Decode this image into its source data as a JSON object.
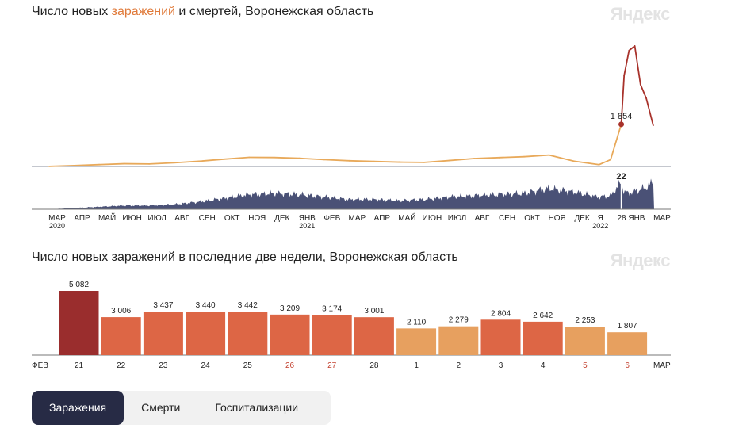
{
  "chart1": {
    "title_pre": "Число новых ",
    "title_hl": "заражений",
    "title_post": " и смертей, Воронежская область",
    "logo": "Яндекс",
    "cases_marker_label": "1 854",
    "deaths_marker_label": "22",
    "colors": {
      "cases_line": "#e8a95a",
      "cases_peak": "#a8322b",
      "deaths_area": "#4a5176",
      "marker": "#a8322b"
    },
    "x_ticks": [
      {
        "label": "МАР",
        "year": "2020",
        "red": false
      },
      {
        "label": "АПР",
        "year": "",
        "red": false
      },
      {
        "label": "МАЙ",
        "year": "",
        "red": false
      },
      {
        "label": "ИЮН",
        "year": "",
        "red": false
      },
      {
        "label": "ИЮЛ",
        "year": "",
        "red": false
      },
      {
        "label": "АВГ",
        "year": "",
        "red": false
      },
      {
        "label": "СЕН",
        "year": "",
        "red": false
      },
      {
        "label": "ОКТ",
        "year": "",
        "red": false
      },
      {
        "label": "НОЯ",
        "year": "",
        "red": false
      },
      {
        "label": "ДЕК",
        "year": "",
        "red": false
      },
      {
        "label": "ЯНВ",
        "year": "2021",
        "red": false
      },
      {
        "label": "ФЕВ",
        "year": "",
        "red": false
      },
      {
        "label": "МАР",
        "year": "",
        "red": false
      },
      {
        "label": "АПР",
        "year": "",
        "red": false
      },
      {
        "label": "МАЙ",
        "year": "",
        "red": false
      },
      {
        "label": "ИЮН",
        "year": "",
        "red": false
      },
      {
        "label": "ИЮЛ",
        "year": "",
        "red": false
      },
      {
        "label": "АВГ",
        "year": "",
        "red": false
      },
      {
        "label": "СЕН",
        "year": "",
        "red": false
      },
      {
        "label": "ОКТ",
        "year": "",
        "red": false
      },
      {
        "label": "НОЯ",
        "year": "",
        "red": false
      },
      {
        "label": "ДЕК",
        "year": "",
        "red": false
      },
      {
        "label": "Я",
        "year": "2022",
        "red": false
      },
      {
        "label": "28",
        "year": "",
        "red": false
      },
      {
        "label": "ЯНВ",
        "year": "",
        "red": false
      },
      {
        "label": "МАР",
        "year": "",
        "red": false
      }
    ]
  },
  "chart2": {
    "title": "Число новых заражений в последние две недели, Воронежская область",
    "logo": "Яндекс",
    "left_label": "ФЕВ",
    "right_label": "МАР"
  },
  "chart_data": [
    {
      "type": "line",
      "title": "Число новых заражений и смертей, Воронежская область",
      "x_range": [
        "2020-03",
        "2022-03"
      ],
      "series": [
        {
          "name": "Заражения",
          "x": [
            "2020-03",
            "2020-04",
            "2020-05",
            "2020-06",
            "2020-07",
            "2020-08",
            "2020-09",
            "2020-10",
            "2020-11",
            "2020-12",
            "2021-01",
            "2021-02",
            "2021-03",
            "2021-04",
            "2021-05",
            "2021-06",
            "2021-07",
            "2021-08",
            "2021-09",
            "2021-10",
            "2021-11",
            "2021-12",
            "2022-01-01",
            "2022-01-15",
            "2022-01-28",
            "2022-02-01",
            "2022-02-07",
            "2022-02-14",
            "2022-02-21",
            "2022-02-28",
            "2022-03-06"
          ],
          "values": [
            5,
            40,
            80,
            120,
            110,
            160,
            230,
            320,
            400,
            395,
            360,
            300,
            250,
            220,
            190,
            180,
            260,
            350,
            390,
            430,
            500,
            230,
            80,
            300,
            1854,
            4000,
            5100,
            5300,
            3600,
            3000,
            1807
          ]
        },
        {
          "name": "Смерти",
          "values": [
            0,
            1,
            2,
            3,
            3,
            4,
            6,
            9,
            12,
            13,
            12,
            10,
            8,
            8,
            7,
            8,
            10,
            11,
            12,
            13,
            17,
            14,
            10,
            11,
            22,
            14,
            13,
            15,
            16,
            18,
            22
          ]
        }
      ],
      "markers": [
        {
          "series": "Заражения",
          "x": "2022-01-28",
          "value": 1854
        },
        {
          "series": "Смерти",
          "x": "2022-01-28",
          "value": 22
        }
      ]
    },
    {
      "type": "bar",
      "title": "Число новых заражений в последние две недели, Воронежская область",
      "categories": [
        "21",
        "22",
        "23",
        "24",
        "25",
        "26",
        "27",
        "28",
        "1",
        "2",
        "3",
        "4",
        "5",
        "6"
      ],
      "weekend": [
        false,
        false,
        false,
        false,
        false,
        true,
        true,
        false,
        false,
        false,
        false,
        false,
        true,
        true
      ],
      "values": [
        5082,
        3006,
        3437,
        3440,
        3442,
        3209,
        3174,
        3001,
        2110,
        2279,
        2804,
        2642,
        2253,
        1807
      ],
      "value_labels": [
        "5 082",
        "3 006",
        "3 437",
        "3 440",
        "3 442",
        "3 209",
        "3 174",
        "3 001",
        "2 110",
        "2 279",
        "2 804",
        "2 642",
        "2 253",
        "1 807"
      ],
      "ylim": [
        0,
        5082
      ],
      "colors": {
        "max": "#9a2d2d",
        "high": "#dd6645",
        "low": "#e7a05f",
        "label": "#222222",
        "weekend_label": "#c23d2b"
      }
    }
  ],
  "tabs": [
    {
      "label": "Заражения",
      "active": true
    },
    {
      "label": "Смерти",
      "active": false
    },
    {
      "label": "Госпитализации",
      "active": false
    }
  ]
}
